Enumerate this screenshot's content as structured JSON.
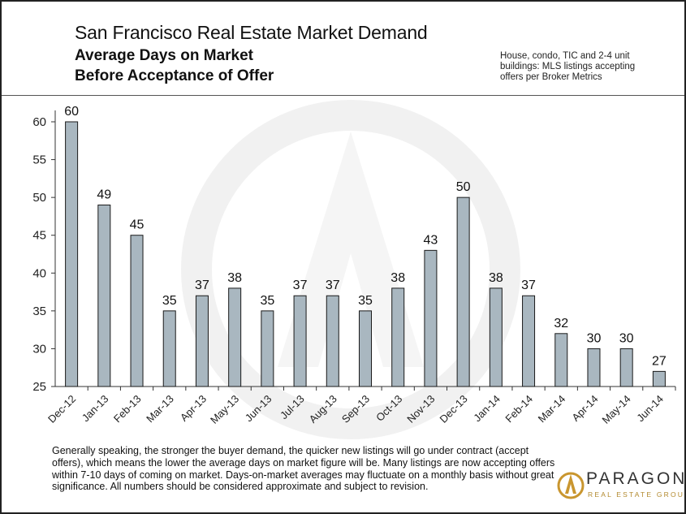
{
  "header": {
    "title": "San Francisco Real Estate Market Demand",
    "subtitle_line1": "Average Days on Market",
    "subtitle_line2": "Before Acceptance of Offer",
    "note_line1": "House, condo, TIC and 2-4 unit",
    "note_line2": "buildings: MLS listings accepting",
    "note_line3": "offers per Broker Metrics"
  },
  "footer": {
    "text": "Generally speaking, the stronger the buyer demand, the quicker new listings will go under contract (accept offers), which means the lower the average days on market figure will be.  Many listings are now accepting offers within 7-10 days of coming on market. Days-on-market averages may fluctuate  on a monthly basis without great significance.  All numbers should be considered approximate and subject to revision."
  },
  "logo": {
    "name": "PARAGON",
    "tagline": "REAL ESTATE GROUP"
  },
  "colors": {
    "bar_fill": "#a9b7c0",
    "bar_stroke": "#1a1a1a",
    "logo_gold": "#c9962f"
  },
  "chart_data": {
    "type": "bar",
    "categories": [
      "Dec-12",
      "Jan-13",
      "Feb-13",
      "Mar-13",
      "Apr-13",
      "May-13",
      "Jun-13",
      "Jul-13",
      "Aug-13",
      "Sep-13",
      "Oct-13",
      "Nov-13",
      "Dec-13",
      "Jan-14",
      "Feb-14",
      "Mar-14",
      "Apr-14",
      "May-14",
      "Jun-14"
    ],
    "values": [
      60,
      49,
      45,
      35,
      37,
      38,
      35,
      37,
      37,
      35,
      38,
      43,
      50,
      38,
      37,
      32,
      30,
      30,
      27
    ],
    "ylim": [
      25,
      60
    ],
    "yticks": [
      25,
      30,
      35,
      40,
      45,
      50,
      55,
      60
    ],
    "grid": false,
    "data_labels": true
  }
}
